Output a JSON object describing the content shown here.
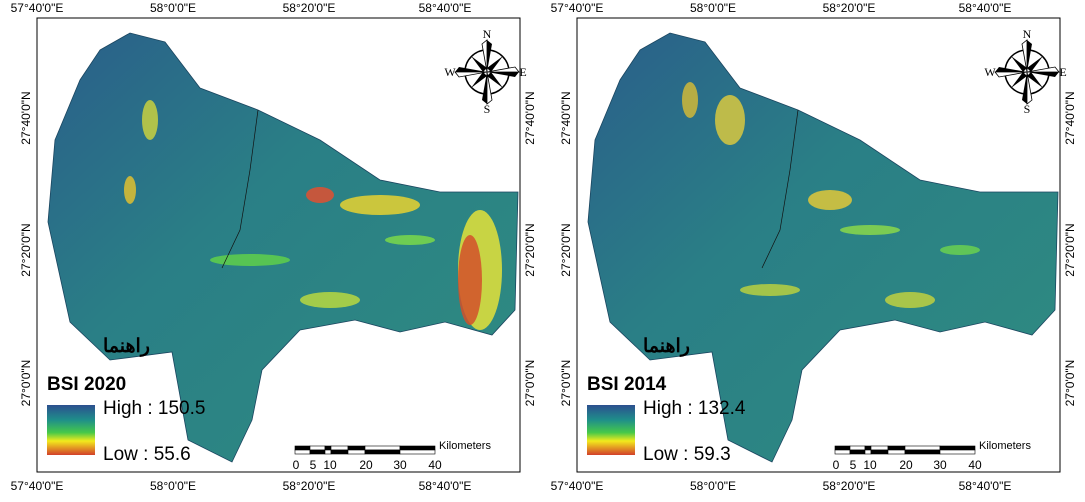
{
  "panels": [
    {
      "legend_heading": "راهنما",
      "index_title": "BSI 2020",
      "high_label": "High : 150.5",
      "low_label": "Low : 55.6",
      "lon_labels": [
        "57°40'0\"E",
        "58°0'0\"E",
        "58°20'0\"E",
        "58°40'0\"E"
      ],
      "lat_labels": [
        "27°40'0\"N",
        "27°20'0\"N",
        "27°0'0\"N"
      ],
      "scale_labels": [
        "0",
        "5",
        "10",
        "20",
        "30",
        "40"
      ],
      "scale_unit": "Kilometers",
      "compass": {
        "n": "N",
        "s": "S",
        "e": "E",
        "w": "W"
      }
    },
    {
      "legend_heading": "راهنما",
      "index_title": "BSI 2014",
      "high_label": "High : 132.4",
      "low_label": "Low : 59.3",
      "lon_labels": [
        "57°40'0\"E",
        "58°0'0\"E",
        "58°20'0\"E",
        "58°40'0\"E"
      ],
      "lat_labels": [
        "27°40'0\"N",
        "27°20'0\"N",
        "27°0'0\"N"
      ],
      "scale_labels": [
        "0",
        "5",
        "10",
        "20",
        "30",
        "40"
      ],
      "scale_unit": "Kilometers",
      "compass": {
        "n": "N",
        "s": "S",
        "e": "E",
        "w": "W"
      }
    }
  ]
}
